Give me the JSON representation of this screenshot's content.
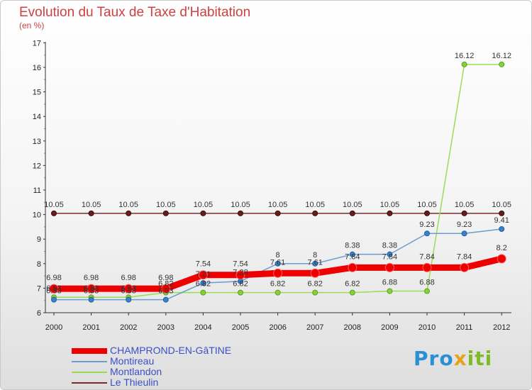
{
  "title": "Evolution du Taux de Taxe d'Habitation",
  "subtitle": "(en %)",
  "logo": {
    "p1": "Pro",
    "p2": "x",
    "p3": "iti"
  },
  "colors": {
    "title": "#d04040",
    "legend_text": "#3a50c8"
  },
  "chart_data": {
    "type": "line",
    "title": "Evolution du Taux de Taxe d'Habitation",
    "ylabel": "(en %)",
    "xlabel": "",
    "ylim": [
      6,
      17
    ],
    "y_ticks": [
      6,
      7,
      8,
      9,
      10,
      11,
      12,
      13,
      14,
      15,
      16,
      17
    ],
    "x": [
      "2000",
      "2001",
      "2002",
      "2003",
      "2004",
      "2005",
      "2006",
      "2007",
      "2008",
      "2009",
      "2010",
      "2011",
      "2012"
    ],
    "grid": false,
    "legend_position": "bottom-left",
    "series": [
      {
        "name": "CHAMPROND-EN-GâTINE",
        "color": "#ee0000",
        "values": [
          6.98,
          6.98,
          6.98,
          6.98,
          7.54,
          7.54,
          7.61,
          7.61,
          7.84,
          7.84,
          7.84,
          7.84,
          8.2
        ],
        "labels": [
          "6.98",
          "6.98",
          "6.98",
          "6.98",
          "7.54",
          "7.54",
          "7.61",
          "7.61",
          "7.84",
          "7.84",
          "7.84",
          "7.84",
          "8.2"
        ]
      },
      {
        "name": "Montireau",
        "color": "#6a9ccc",
        "values": [
          6.53,
          6.53,
          6.53,
          6.53,
          7.21,
          7.28,
          8,
          8,
          8.38,
          8.38,
          9.23,
          9.23,
          9.41
        ],
        "labels": [
          "6.53",
          "6.53",
          "6.53",
          "6.53",
          "7.21",
          "7.28",
          "8",
          "8",
          "8.38",
          "8.38",
          "9.23",
          "9.23",
          "9.41"
        ]
      },
      {
        "name": "Montlandon",
        "color": "#99dd55",
        "values": [
          6.63,
          6.63,
          6.63,
          6.82,
          6.82,
          6.82,
          6.82,
          6.82,
          6.82,
          6.88,
          6.88,
          16.12,
          16.12
        ],
        "labels": [
          "6.63",
          "6.63",
          "6.63",
          "6.82",
          "6.82",
          "6.82",
          "6.82",
          "6.82",
          "6.82",
          "6.88",
          "6.88",
          "16.12",
          "16.12"
        ]
      },
      {
        "name": "Le Thieulin",
        "color": "#7a2a2a",
        "values": [
          10.05,
          10.05,
          10.05,
          10.05,
          10.05,
          10.05,
          10.05,
          10.05,
          10.05,
          10.05,
          10.05,
          10.05,
          10.05
        ],
        "labels": [
          "10.05",
          "10.05",
          "10.05",
          "10.05",
          "10.05",
          "10.05",
          "10.05",
          "10.05",
          "10.05",
          "10.05",
          "10.05",
          "10.05",
          "10.05"
        ]
      }
    ]
  }
}
